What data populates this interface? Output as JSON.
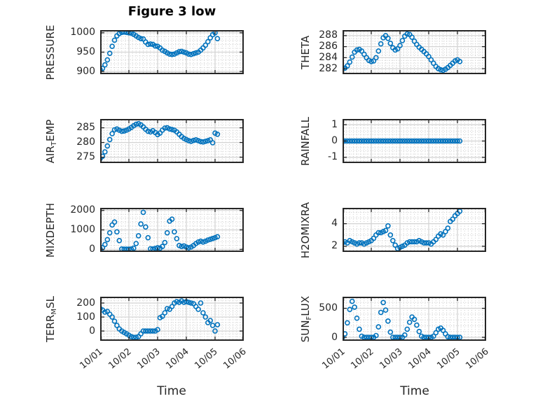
{
  "chart_data": {
    "type": "scatter",
    "title": "Figure 3 low",
    "xlabel": "Time",
    "marker": {
      "style": "open-circle",
      "color": "#0072BD"
    },
    "grid": {
      "major": true,
      "minor": true,
      "minor_style": "dotted"
    },
    "colors": {
      "marker": "#0072BD",
      "axis_box": "#262626",
      "major_grid": "#d4d4d4",
      "minor_grid": "#cccccc",
      "text": "#262626",
      "background": "#ffffff"
    },
    "x_axis": {
      "tick_labels": [
        "10/01",
        "10/02",
        "10/03",
        "10/04",
        "10/05",
        "10/06"
      ],
      "tick_positions_days": [
        0,
        1,
        2,
        3,
        4,
        5
      ],
      "lim_days": [
        0,
        5
      ],
      "minor_step_days": 0.125,
      "tick_label_rotation_deg": 40,
      "labels_only_on_bottom_row": true
    },
    "x_days": [
      0,
      0.083,
      0.167,
      0.25,
      0.333,
      0.417,
      0.5,
      0.583,
      0.667,
      0.75,
      0.833,
      0.917,
      1,
      1.083,
      1.167,
      1.25,
      1.333,
      1.417,
      1.5,
      1.583,
      1.667,
      1.75,
      1.833,
      1.917,
      2,
      2.083,
      2.167,
      2.25,
      2.333,
      2.417,
      2.5,
      2.583,
      2.667,
      2.75,
      2.833,
      2.917,
      3,
      3.083,
      3.167,
      3.25,
      3.333,
      3.417,
      3.5,
      3.583,
      3.667,
      3.75,
      3.833,
      3.917,
      4,
      4.083
    ],
    "subplots": [
      {
        "id": "pressure",
        "row": 0,
        "col": 0,
        "ylabel": "PRESSURE",
        "ylabel_parts": [
          {
            "text": "PRESSURE"
          }
        ],
        "yticks": [
          900,
          950,
          1000
        ],
        "ylim": [
          893,
          1007
        ],
        "y_minor_step": 10,
        "values": [
          905,
          908,
          917,
          930,
          947,
          965,
          981,
          992,
          998,
          1001,
          1002,
          1001,
          1000,
          999,
          996,
          992,
          988,
          985,
          984,
          976,
          970,
          971,
          970,
          966,
          965,
          961,
          955,
          952,
          948,
          945,
          944,
          945,
          948,
          951,
          952,
          950,
          948,
          945,
          944,
          946,
          948,
          950,
          955,
          961,
          968,
          977,
          987,
          995,
          1000,
          985
        ]
      },
      {
        "id": "theta",
        "row": 0,
        "col": 1,
        "ylabel": "THETA",
        "ylabel_parts": [
          {
            "text": "THETA"
          }
        ],
        "yticks": [
          282,
          284,
          286,
          288
        ],
        "ylim": [
          281,
          289
        ],
        "y_minor_step": 0.5,
        "values": [
          282,
          282.1,
          282.5,
          283.2,
          284.1,
          285,
          285.4,
          285.5,
          285.2,
          284.6,
          284,
          283.5,
          283.3,
          283.4,
          284,
          285.2,
          286.5,
          287.6,
          288,
          287.5,
          286.6,
          285.8,
          285.4,
          285.6,
          286.2,
          287.1,
          287.9,
          288.3,
          288.2,
          287.7,
          287,
          286.4,
          285.9,
          285.5,
          285.1,
          284.7,
          284.2,
          283.6,
          283,
          282.4,
          282,
          281.8,
          281.7,
          281.9,
          282.2,
          282.6,
          283,
          283.4,
          283.6,
          283.3
        ]
      },
      {
        "id": "air-temp",
        "row": 1,
        "col": 0,
        "ylabel": "AIR_TEMP",
        "ylabel_parts": [
          {
            "text": "AIR"
          },
          {
            "text": "T",
            "sub": true
          },
          {
            "text": "EMP"
          }
        ],
        "yticks": [
          275,
          280,
          285
        ],
        "ylim": [
          273,
          288
        ],
        "y_minor_step": 1,
        "values": [
          274.5,
          275.3,
          276.8,
          278.8,
          281,
          283,
          284.3,
          284.6,
          284.2,
          283.8,
          283.9,
          284.2,
          284.6,
          285.1,
          285.7,
          286.2,
          286.4,
          286,
          285.3,
          284.5,
          283.8,
          283.6,
          284,
          283.4,
          282.7,
          283.2,
          284.2,
          284.9,
          285,
          284.6,
          284.4,
          284.2,
          283.6,
          282.8,
          282,
          281.4,
          281,
          280.6,
          280.4,
          280.7,
          280.9,
          280.6,
          280.3,
          280.2,
          280.4,
          280.6,
          280.9,
          279.9,
          283.2,
          282.8
        ]
      },
      {
        "id": "rainfall",
        "row": 1,
        "col": 1,
        "ylabel": "RAINFALL",
        "ylabel_parts": [
          {
            "text": "RAINFALL"
          }
        ],
        "yticks": [
          -1,
          0,
          1
        ],
        "ylim": [
          -1.35,
          1.35
        ],
        "y_minor_step": 0.2,
        "values": [
          0,
          0,
          0,
          0,
          0,
          0,
          0,
          0,
          0,
          0,
          0,
          0,
          0,
          0,
          0,
          0,
          0,
          0,
          0,
          0,
          0,
          0,
          0,
          0,
          0,
          0,
          0,
          0,
          0,
          0,
          0,
          0,
          0,
          0,
          0,
          0,
          0,
          0,
          0,
          0,
          0,
          0,
          0,
          0,
          0,
          0,
          0,
          0,
          0,
          0
        ]
      },
      {
        "id": "mixdepth",
        "row": 2,
        "col": 0,
        "ylabel": "MIXDEPTH",
        "ylabel_parts": [
          {
            "text": "MIXDEPTH"
          }
        ],
        "yticks": [
          0,
          1000,
          2000
        ],
        "ylim": [
          -130,
          2130
        ],
        "y_minor_step": 200,
        "values": [
          30,
          80,
          250,
          500,
          850,
          1250,
          1400,
          900,
          450,
          20,
          10,
          10,
          10,
          20,
          60,
          300,
          700,
          1300,
          1900,
          1150,
          600,
          30,
          20,
          50,
          80,
          60,
          150,
          350,
          850,
          1450,
          1550,
          900,
          550,
          200,
          150,
          180,
          120,
          80,
          120,
          200,
          300,
          380,
          420,
          380,
          420,
          480,
          520,
          560,
          600,
          650
        ]
      },
      {
        "id": "h2omixra",
        "row": 2,
        "col": 1,
        "ylabel": "H2OMIXRA",
        "ylabel_parts": [
          {
            "text": "H2OMIXRA"
          }
        ],
        "yticks": [
          2,
          4
        ],
        "ylim": [
          1.5,
          5.4
        ],
        "y_minor_step": 0.5,
        "values": [
          2.3,
          2.4,
          2.3,
          2.5,
          2.4,
          2.3,
          2.2,
          2.3,
          2.3,
          2.2,
          2.3,
          2.4,
          2.5,
          2.7,
          3,
          3.2,
          3.2,
          3.3,
          3.4,
          3.8,
          3,
          2.5,
          2.1,
          1.8,
          1.9,
          2,
          2.1,
          2.3,
          2.4,
          2.4,
          2.4,
          2.4,
          2.5,
          2.4,
          2.3,
          2.3,
          2.3,
          2.2,
          2.4,
          2.6,
          2.9,
          3.1,
          3,
          3.3,
          3.6,
          4.2,
          4.4,
          4.7,
          4.9,
          5.1
        ]
      },
      {
        "id": "terr-msl",
        "row": 3,
        "col": 0,
        "ylabel": "TERR_MSL",
        "ylabel_parts": [
          {
            "text": "TERR"
          },
          {
            "text": "M",
            "sub": true
          },
          {
            "text": "SL"
          }
        ],
        "yticks": [
          0,
          100,
          200
        ],
        "ylim": [
          -70,
          245
        ],
        "y_minor_step": 20,
        "values": [
          160,
          150,
          135,
          140,
          120,
          100,
          70,
          40,
          15,
          0,
          -10,
          -20,
          -30,
          -40,
          -45,
          -45,
          -40,
          -20,
          0,
          0,
          0,
          0,
          0,
          0,
          10,
          95,
          105,
          130,
          160,
          155,
          175,
          200,
          210,
          205,
          215,
          205,
          210,
          205,
          200,
          195,
          175,
          155,
          200,
          130,
          100,
          60,
          75,
          40,
          0,
          45
        ]
      },
      {
        "id": "sun-flux",
        "row": 3,
        "col": 1,
        "ylabel": "SUN_FLUX",
        "ylabel_parts": [
          {
            "text": "SUN"
          },
          {
            "text": "F",
            "sub": true
          },
          {
            "text": "LUX"
          }
        ],
        "yticks": [
          0,
          500
        ],
        "ylim": [
          -60,
          700
        ],
        "y_minor_step": 100,
        "values": [
          0,
          60,
          250,
          480,
          620,
          520,
          330,
          140,
          20,
          0,
          0,
          0,
          0,
          0,
          30,
          180,
          430,
          600,
          470,
          280,
          90,
          0,
          0,
          0,
          0,
          0,
          40,
          140,
          260,
          350,
          310,
          210,
          100,
          20,
          0,
          0,
          0,
          0,
          20,
          80,
          140,
          160,
          120,
          60,
          10,
          0,
          0,
          0,
          0,
          0
        ]
      }
    ]
  }
}
